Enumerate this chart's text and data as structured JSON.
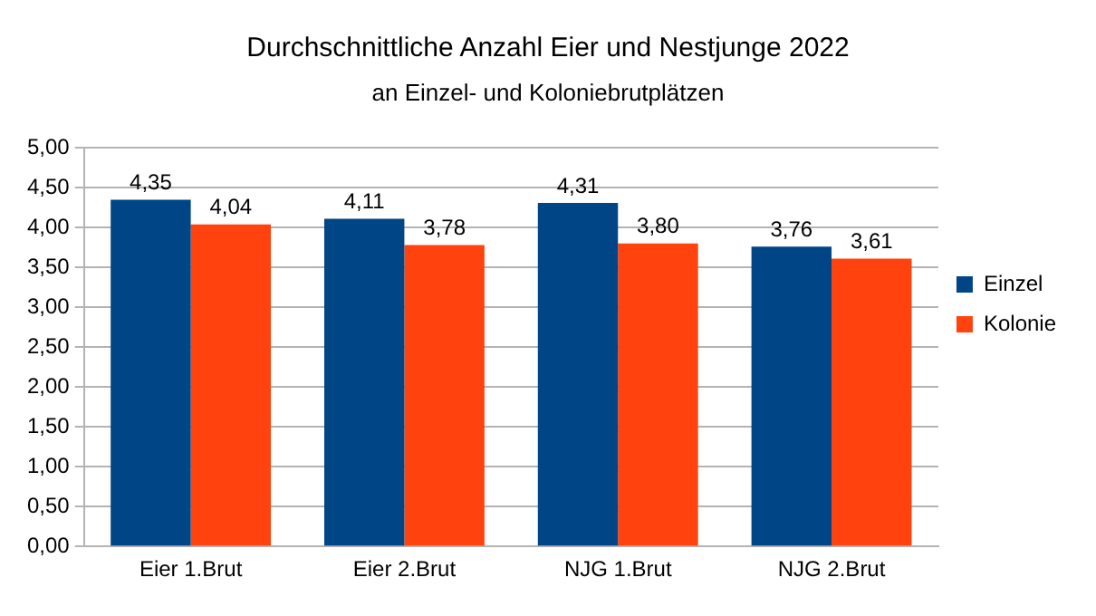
{
  "chart_data": {
    "type": "bar",
    "title": "Durchschnittliche Anzahl Eier und Nestjunge 2022",
    "subtitle": "an Einzel- und Koloniebrutplätzen",
    "categories": [
      "Eier 1.Brut",
      "Eier 2.Brut",
      "NJG 1.Brut",
      "NJG 2.Brut"
    ],
    "series": [
      {
        "name": "Einzel",
        "color": "#004586",
        "values": [
          4.35,
          4.11,
          4.31,
          3.76
        ],
        "value_labels": [
          "4,35",
          "4,11",
          "4,31",
          "3,76"
        ]
      },
      {
        "name": "Kolonie",
        "color": "#ff420e",
        "values": [
          4.04,
          3.78,
          3.8,
          3.61
        ],
        "value_labels": [
          "4,04",
          "3,78",
          "3,80",
          "3,61"
        ]
      }
    ],
    "ylim": [
      0,
      5
    ],
    "yticks": [
      {
        "value": 0,
        "label": "0,00"
      },
      {
        "value": 0.5,
        "label": "0,50"
      },
      {
        "value": 1,
        "label": "1,00"
      },
      {
        "value": 1.5,
        "label": "1,50"
      },
      {
        "value": 2,
        "label": "2,00"
      },
      {
        "value": 2.5,
        "label": "2,50"
      },
      {
        "value": 3,
        "label": "3,00"
      },
      {
        "value": 3.5,
        "label": "3,50"
      },
      {
        "value": 4,
        "label": "4,00"
      },
      {
        "value": 4.5,
        "label": "4,50"
      },
      {
        "value": 5,
        "label": "5,00"
      }
    ],
    "grid": "y",
    "legend": "right"
  }
}
